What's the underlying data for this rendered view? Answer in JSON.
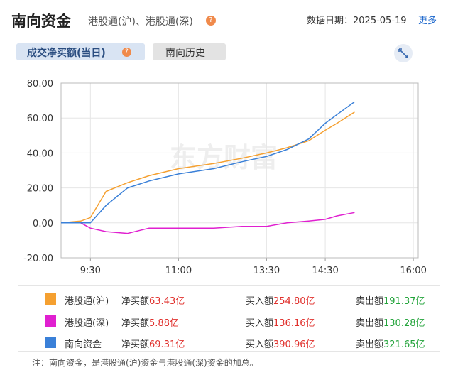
{
  "header": {
    "title": "南向资金",
    "subtitle": "港股通(沪)、港股通(深)",
    "date_label": "数据日期：2025-05-19",
    "more": "更多"
  },
  "tabs": [
    "成交净买额(当日)",
    "南向历史"
  ],
  "chart_data": {
    "type": "line",
    "watermark": "东方财富",
    "x": [
      "09:00",
      "09:20",
      "09:30",
      "09:46",
      "10:08",
      "10:30",
      "11:00",
      "11:36",
      "13:05",
      "13:30",
      "13:51",
      "14:13",
      "14:30",
      "14:42",
      "15:00"
    ],
    "xlim": [
      "09:00",
      "16:05"
    ],
    "xticks": [
      {
        "value": "09:30",
        "label": "9:30"
      },
      {
        "value": "11:00",
        "label": "11:00"
      },
      {
        "value": "13:30",
        "label": "13:30"
      },
      {
        "value": "14:30",
        "label": "14:30"
      },
      {
        "value": "16:00",
        "label": "16:00"
      }
    ],
    "ylim": [
      -20,
      80
    ],
    "yticks": [
      {
        "value": 80,
        "label": "80.00"
      },
      {
        "value": 60,
        "label": "60.00"
      },
      {
        "value": 40,
        "label": "40.00"
      },
      {
        "value": 20,
        "label": "20.00"
      },
      {
        "value": 0,
        "label": "0.00"
      },
      {
        "value": -20,
        "label": "-20.00"
      }
    ],
    "grid": true,
    "series": [
      {
        "name": "港股通(沪)",
        "color": "#f5a030",
        "values": [
          0,
          1,
          3,
          18,
          23,
          27,
          31,
          34,
          37,
          40,
          43,
          47,
          53,
          57,
          63.43
        ]
      },
      {
        "name": "港股通(深)",
        "color": "#e020d0",
        "values": [
          0,
          0,
          -3,
          -5,
          -6,
          -3,
          -3,
          -3,
          -2,
          -2,
          0,
          1,
          2,
          4,
          5.88
        ]
      },
      {
        "name": "南向资金",
        "color": "#3a80d8",
        "values": [
          0,
          0,
          0,
          10,
          20,
          24,
          28,
          31,
          35,
          38,
          42,
          48,
          57,
          62,
          69.31
        ]
      }
    ]
  },
  "summary": {
    "labels": [
      "净买额",
      "买入额",
      "卖出额"
    ],
    "rows": [
      [
        "63.43亿",
        "254.80亿",
        "191.37亿"
      ],
      [
        "5.88亿",
        "136.16亿",
        "130.28亿"
      ],
      [
        "69.31亿",
        "390.96亿",
        "321.65亿"
      ]
    ]
  },
  "note": "注：南向资金，是港股通(沪)资金与港股通(深)资金的加总。"
}
